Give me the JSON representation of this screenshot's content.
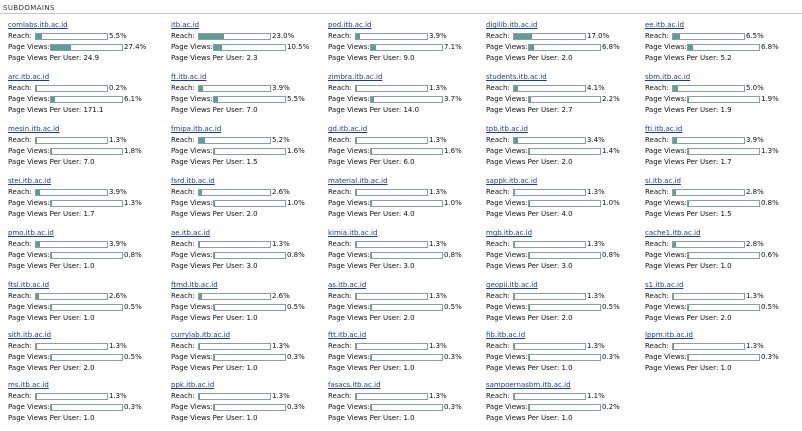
{
  "section_title": "SUBDOMAINS",
  "labels": {
    "reach": "Reach:",
    "page_views": "Page Views:",
    "per_user_prefix": "Page Views Per User: "
  },
  "colors": {
    "bar_fill": "#5f9e98",
    "bar_border": "#8aa0a0",
    "link": "#1a3c9e"
  },
  "subdomains": [
    {
      "name": "comlabs.itb.ac.id",
      "reach": "5.5%",
      "page_views": "27.4%",
      "per_user": "24.9"
    },
    {
      "name": "itb.ac.id",
      "reach": "23.0%",
      "page_views": "10.5%",
      "per_user": "2.3"
    },
    {
      "name": "pod.itb.ac.id",
      "reach": "3.9%",
      "page_views": "7.1%",
      "per_user": "9.0"
    },
    {
      "name": "digilib.itb.ac.id",
      "reach": "17.0%",
      "page_views": "6.8%",
      "per_user": "2.0"
    },
    {
      "name": "ee.itb.ac.id",
      "reach": "6.5%",
      "page_views": "6.8%",
      "per_user": "5.2"
    },
    {
      "name": "arc.itb.ac.id",
      "reach": "0.2%",
      "page_views": "6.1%",
      "per_user": "171.1"
    },
    {
      "name": "ft.itb.ac.id",
      "reach": "3.9%",
      "page_views": "5.5%",
      "per_user": "7.0"
    },
    {
      "name": "zimbra.itb.ac.id",
      "reach": "1.3%",
      "page_views": "3.7%",
      "per_user": "14.0"
    },
    {
      "name": "students.itb.ac.id",
      "reach": "4.1%",
      "page_views": "2.2%",
      "per_user": "2.7"
    },
    {
      "name": "sbm.itb.ac.id",
      "reach": "5.0%",
      "page_views": "1.9%",
      "per_user": "1.9"
    },
    {
      "name": "mesin.itb.ac.id",
      "reach": "1.3%",
      "page_views": "1.8%",
      "per_user": "7.0"
    },
    {
      "name": "fmipa.itb.ac.id",
      "reach": "5.2%",
      "page_views": "1.6%",
      "per_user": "1.5"
    },
    {
      "name": "gd.itb.ac.id",
      "reach": "1.3%",
      "page_views": "1.6%",
      "per_user": "6.0"
    },
    {
      "name": "tpb.itb.ac.id",
      "reach": "3.4%",
      "page_views": "1.4%",
      "per_user": "2.0"
    },
    {
      "name": "fti.itb.ac.id",
      "reach": "3.9%",
      "page_views": "1.3%",
      "per_user": "1.7"
    },
    {
      "name": "stei.itb.ac.id",
      "reach": "3.9%",
      "page_views": "1.3%",
      "per_user": "1.7"
    },
    {
      "name": "fsrd.itb.ac.id",
      "reach": "2.6%",
      "page_views": "1.0%",
      "per_user": "2.0"
    },
    {
      "name": "material.itb.ac.id",
      "reach": "1.3%",
      "page_views": "1.0%",
      "per_user": "4.0"
    },
    {
      "name": "sappk.itb.ac.id",
      "reach": "1.3%",
      "page_views": "1.0%",
      "per_user": "4.0"
    },
    {
      "name": "si.itb.ac.id",
      "reach": "2.8%",
      "page_views": "0.8%",
      "per_user": "1.5"
    },
    {
      "name": "pmo.itb.ac.id",
      "reach": "3.9%",
      "page_views": "0.8%",
      "per_user": "1.0"
    },
    {
      "name": "ae.itb.ac.id",
      "reach": "1.3%",
      "page_views": "0.8%",
      "per_user": "3.0"
    },
    {
      "name": "kimia.itb.ac.id",
      "reach": "1.3%",
      "page_views": "0.8%",
      "per_user": "3.0"
    },
    {
      "name": "mgb.itb.ac.id",
      "reach": "1.3%",
      "page_views": "0.8%",
      "per_user": "3.0"
    },
    {
      "name": "cache1.itb.ac.id",
      "reach": "2.8%",
      "page_views": "0.6%",
      "per_user": "1.0"
    },
    {
      "name": "ftsl.itb.ac.id",
      "reach": "2.6%",
      "page_views": "0.5%",
      "per_user": "1.0"
    },
    {
      "name": "ftmd.itb.ac.id",
      "reach": "2.6%",
      "page_views": "0.5%",
      "per_user": "1.0"
    },
    {
      "name": "as.itb.ac.id",
      "reach": "1.3%",
      "page_views": "0.5%",
      "per_user": "2.0"
    },
    {
      "name": "geopii.itb.ac.id",
      "reach": "1.3%",
      "page_views": "0.5%",
      "per_user": "2.0"
    },
    {
      "name": "s1.itb.ac.id",
      "reach": "1.3%",
      "page_views": "0.5%",
      "per_user": "2.0"
    },
    {
      "name": "sith.itb.ac.id",
      "reach": "1.3%",
      "page_views": "0.5%",
      "per_user": "2.0"
    },
    {
      "name": "currylab.itb.ac.id",
      "reach": "1.3%",
      "page_views": "0.3%",
      "per_user": "1.0"
    },
    {
      "name": "ftt.itb.ac.id",
      "reach": "1.3%",
      "page_views": "0.3%",
      "per_user": "1.0"
    },
    {
      "name": "fib.itb.ac.id",
      "reach": "1.3%",
      "page_views": "0.3%",
      "per_user": "1.0"
    },
    {
      "name": "lppm.itb.ac.id",
      "reach": "1.3%",
      "page_views": "0.3%",
      "per_user": "1.0"
    },
    {
      "name": "ms.itb.ac.id",
      "reach": "1.3%",
      "page_views": "0.3%",
      "per_user": "1.0"
    },
    {
      "name": "ppk.itb.ac.id",
      "reach": "1.3%",
      "page_views": "0.3%",
      "per_user": "1.0"
    },
    {
      "name": "fasacs.itb.ac.id",
      "reach": "1.3%",
      "page_views": "0.3%",
      "per_user": "1.0"
    },
    {
      "name": "sampoernasbm.itb.ac.id",
      "reach": "1.1%",
      "page_views": "0.2%",
      "per_user": "1.0"
    }
  ]
}
